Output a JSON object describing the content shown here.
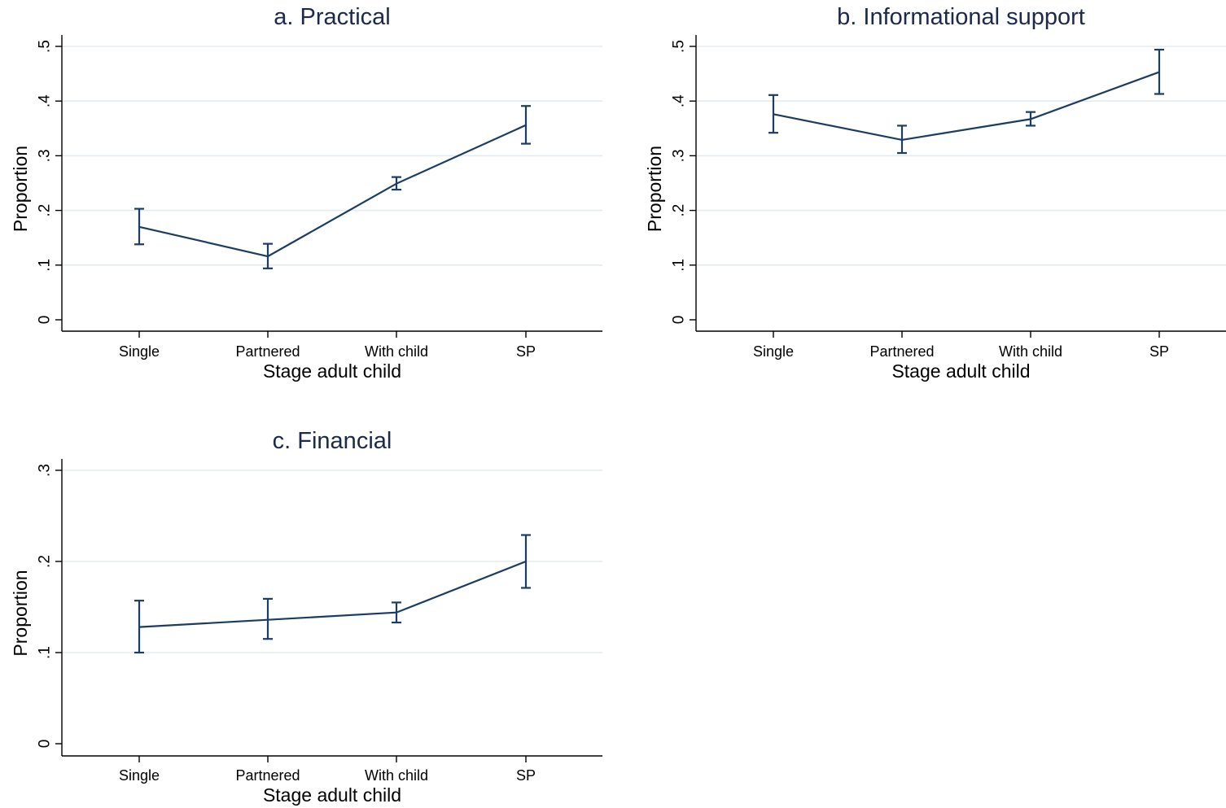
{
  "colors": {
    "series": "#1b3d63",
    "title": "#1b2a4a",
    "grid": "#e3ebf0",
    "axis": "#000000"
  },
  "chart_data": [
    {
      "type": "line",
      "title": "a. Practical",
      "xlabel": "Stage adult child",
      "ylabel": "Proportion",
      "categories": [
        "Single",
        "Partnered",
        "With child",
        "SP"
      ],
      "ylim": [
        0,
        0.5
      ],
      "yticks": [
        0,
        0.1,
        0.2,
        0.3,
        0.4,
        0.5
      ],
      "ytick_labels": [
        "0",
        ".1",
        ".2",
        ".3",
        ".4",
        ".5"
      ],
      "grid": true,
      "series": [
        {
          "values": [
            0.17,
            0.116,
            0.249,
            0.356
          ],
          "ci_low": [
            0.138,
            0.094,
            0.238,
            0.322
          ],
          "ci_high": [
            0.203,
            0.139,
            0.261,
            0.391
          ]
        }
      ]
    },
    {
      "type": "line",
      "title": "b. Informational support",
      "xlabel": "Stage adult child",
      "ylabel": "Proportion",
      "categories": [
        "Single",
        "Partnered",
        "With child",
        "SP"
      ],
      "ylim": [
        0,
        0.5
      ],
      "yticks": [
        0,
        0.1,
        0.2,
        0.3,
        0.4,
        0.5
      ],
      "ytick_labels": [
        "0",
        ".1",
        ".2",
        ".3",
        ".4",
        ".5"
      ],
      "grid": true,
      "series": [
        {
          "values": [
            0.376,
            0.329,
            0.367,
            0.453
          ],
          "ci_low": [
            0.342,
            0.305,
            0.355,
            0.413
          ],
          "ci_high": [
            0.411,
            0.355,
            0.38,
            0.494
          ]
        }
      ]
    },
    {
      "type": "line",
      "title": "c. Financial",
      "xlabel": "Stage adult child",
      "ylabel": "Proportion",
      "categories": [
        "Single",
        "Partnered",
        "With child",
        "SP"
      ],
      "ylim": [
        0,
        0.3
      ],
      "yticks": [
        0,
        0.1,
        0.2,
        0.3
      ],
      "ytick_labels": [
        "0",
        ".1",
        ".2",
        ".3"
      ],
      "grid": true,
      "series": [
        {
          "values": [
            0.128,
            0.136,
            0.144,
            0.2
          ],
          "ci_low": [
            0.1,
            0.115,
            0.133,
            0.171
          ],
          "ci_high": [
            0.157,
            0.159,
            0.155,
            0.229
          ]
        }
      ]
    }
  ]
}
